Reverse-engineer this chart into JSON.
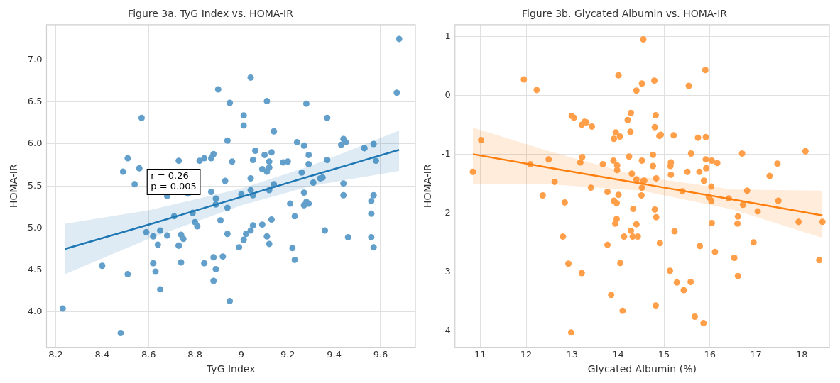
{
  "chart_data": [
    {
      "type": "scatter",
      "title": "Figure 3a. TyG Index vs. HOMA-IR",
      "xlabel": "TyG Index",
      "ylabel": "HOMA-IR",
      "grid": true,
      "legend": false,
      "xlim": [
        8.16,
        9.75
      ],
      "xticks": [
        8.2,
        8.4,
        8.6,
        8.8,
        9.0,
        9.2,
        9.4,
        9.6
      ],
      "ylim": [
        3.58,
        7.42
      ],
      "yticks": [
        {
          "value": 4,
          "label": "4.0"
        },
        4.5,
        {
          "value": 5,
          "label": "5.0"
        },
        5.5,
        {
          "value": 6,
          "label": "6.0"
        },
        6.5,
        {
          "value": 7,
          "label": "7.0"
        }
      ],
      "annotations": [
        "r = 0.26\np = 0.005"
      ],
      "series": [
        {
          "marker": "circle",
          "color": "#62a0cb",
          "x": [
            8.23,
            8.48,
            8.4,
            8.51,
            8.49,
            8.51,
            8.54,
            8.56,
            8.57,
            8.59,
            8.62,
            8.65,
            8.64,
            8.62,
            8.63,
            8.65,
            8.68,
            8.68,
            8.71,
            8.73,
            8.73,
            8.73,
            8.74,
            8.75,
            8.74,
            8.77,
            8.79,
            8.8,
            8.81,
            8.82,
            8.84,
            8.87,
            8.88,
            8.84,
            8.87,
            8.89,
            8.89,
            8.91,
            8.88,
            8.89,
            8.92,
            8.88,
            8.95,
            8.9,
            8.95,
            8.94,
            8.93,
            8.94,
            8.94,
            8.96,
            9.68,
            9.67,
            9.04,
            9.11,
            9.28,
            9.01,
            9.01,
            9.37,
            9.14,
            9.24,
            9.27,
            9.06,
            9.1,
            9.13,
            9.29,
            9.05,
            9.12,
            9.18,
            9.2,
            9.29,
            9.37,
            9.09,
            9.12,
            9.11,
            9.26,
            9.04,
            9.34,
            9.35,
            9.31,
            9.14,
            9.04,
            9.12,
            9.0,
            9.05,
            9.27,
            9.44,
            9.44,
            9.44,
            9.43,
            9.45,
            9.53,
            9.53,
            9.57,
            9.58,
            9.57,
            9.56,
            9.56,
            9.56,
            9.57,
            9.46,
            9.36,
            9.21,
            9.23,
            9.27,
            9.28,
            9.29,
            9.22,
            9.23,
            9.09,
            9.13,
            9.05,
            9.04,
            9.02,
            9.01,
            8.99,
            9.11,
            9.12
          ],
          "values": [
            4.04,
            3.75,
            4.55,
            4.45,
            5.67,
            5.83,
            5.52,
            5.71,
            6.31,
            4.95,
            4.9,
            4.97,
            4.8,
            4.58,
            4.48,
            4.27,
            5.38,
            4.91,
            5.14,
            5.8,
            4.79,
            4.79,
            4.92,
            4.87,
            4.59,
            5.41,
            5.18,
            5.07,
            5.02,
            5.8,
            5.83,
            5.83,
            5.88,
            4.58,
            5.43,
            5.35,
            5.28,
            5.09,
            4.65,
            4.51,
            4.66,
            4.37,
            4.13,
            6.65,
            6.49,
            6.04,
            5.56,
            5.24,
            4.93,
            5.79,
            7.25,
            6.61,
            6.79,
            6.51,
            6.48,
            6.34,
            6.22,
            6.31,
            6.15,
            6.02,
            5.98,
            5.92,
            5.87,
            5.9,
            5.87,
            5.81,
            5.79,
            5.78,
            5.79,
            5.76,
            5.81,
            5.7,
            5.72,
            5.67,
            5.66,
            5.59,
            5.59,
            5.6,
            5.54,
            5.52,
            5.45,
            5.45,
            5.4,
            5.39,
            5.42,
            5.53,
            5.39,
            6.06,
            5.99,
            6.02,
            5.95,
            5.95,
            6.0,
            5.8,
            5.39,
            5.32,
            5.17,
            4.89,
            4.77,
            4.89,
            4.97,
            5.29,
            5.14,
            5.27,
            5.31,
            5.29,
            4.76,
            4.62,
            5.04,
            5.1,
            5.03,
            4.97,
            4.93,
            4.86,
            4.77,
            4.9,
            4.81
          ]
        },
        {
          "type": "line",
          "marker": "none",
          "color": "#1f77b4",
          "x": [
            8.24,
            8.6,
            9.0,
            9.3,
            9.68
          ],
          "values": [
            4.75,
            5.04,
            5.37,
            5.62,
            5.93
          ],
          "lower": [
            4.45,
            4.87,
            5.27,
            5.5,
            5.68
          ],
          "upper": [
            5.05,
            5.21,
            5.47,
            5.74,
            6.16
          ]
        }
      ]
    },
    {
      "type": "scatter",
      "title": "Figure 3b. Glycated Albumin vs. HOMA-IR",
      "xlabel": "Glycated Albumin (%)",
      "ylabel": "HOMA-IR",
      "grid": true,
      "legend": false,
      "xlim": [
        10.45,
        18.6
      ],
      "xticks": [
        11,
        12,
        13,
        14,
        15,
        16,
        17,
        18
      ],
      "ylim": [
        -4.28,
        1.2
      ],
      "yticks": [
        -4,
        -3,
        -2,
        -1,
        0,
        1
      ],
      "series": [
        {
          "marker": "circle",
          "color": "#ff9f4a",
          "x": [
            10.84,
            11.02,
            11.95,
            12.23,
            12.09,
            12.49,
            12.62,
            12.36,
            12.84,
            12.8,
            12.92,
            13.21,
            12.98,
            12.99,
            13.04,
            13.21,
            13.27,
            13.31,
            13.43,
            13.22,
            13.18,
            13.41,
            13.67,
            13.77,
            13.9,
            13.98,
            13.98,
            14.01,
            13.91,
            13.97,
            13.97,
            13.94,
            13.77,
            13.85,
            14.1,
            14.05,
            14.13,
            14.01,
            13.95,
            14.04,
            13.91,
            14.28,
            14.21,
            14.27,
            14.24,
            14.3,
            14.4,
            14.52,
            14.33,
            14.4,
            14.28,
            14.32,
            14.43,
            14.4,
            14.52,
            14.55,
            14.52,
            14.51,
            14.54,
            14.79,
            15.54,
            15.9,
            14.82,
            14.8,
            14.9,
            14.93,
            15.21,
            15.74,
            15.91,
            16.7,
            18.08,
            17.47,
            17.3,
            14.76,
            14.76,
            14.83,
            14.57,
            15.15,
            15.14,
            15.15,
            15.59,
            15.51,
            15.77,
            15.91,
            16.04,
            16.16,
            15.92,
            15.87,
            16.03,
            15.4,
            15.98,
            16.03,
            16.41,
            16.81,
            16.72,
            17.04,
            17.49,
            17.93,
            18.45,
            18.38,
            16.61,
            16.6,
            16.04,
            16.95,
            16.53,
            16.61,
            16.11,
            15.78,
            15.23,
            14.91,
            14.8,
            14.83,
            15.13,
            15.28,
            15.58,
            15.43,
            14.82,
            15.67,
            15.86
          ],
          "values": [
            -1.3,
            -0.76,
            0.27,
            0.09,
            -1.17,
            -1.09,
            -1.47,
            -1.7,
            -1.82,
            -2.4,
            -2.86,
            -3.02,
            -4.03,
            -0.35,
            -0.38,
            -0.5,
            -0.45,
            -0.46,
            -0.53,
            -1.05,
            -1.14,
            -1.57,
            -1.17,
            -1.64,
            -1.11,
            -1.19,
            -1.27,
            -1.69,
            -1.79,
            -1.83,
            -2.1,
            -2.18,
            -2.54,
            -3.39,
            -3.66,
            -2.85,
            -2.4,
            0.34,
            -0.63,
            -0.7,
            -0.74,
            -0.3,
            -0.42,
            -0.62,
            -1.04,
            -1.33,
            -1.43,
            -1.11,
            -1.93,
            -2.19,
            -2.3,
            -2.4,
            -2.4,
            0.08,
            0.2,
            0.95,
            -1.57,
            -1.7,
            -1.46,
            0.25,
            0.16,
            0.43,
            -0.34,
            -0.54,
            -0.69,
            -0.67,
            -0.68,
            -0.72,
            -0.71,
            -0.99,
            -0.95,
            -1.16,
            -1.37,
            -1.01,
            -1.2,
            -1.41,
            -1.45,
            -1.14,
            -1.2,
            -1.35,
            -0.99,
            -1.3,
            -1.3,
            -1.09,
            -1.11,
            -1.15,
            -1.24,
            -1.45,
            -1.55,
            -1.63,
            -1.73,
            -1.79,
            -1.75,
            -1.62,
            -1.86,
            -1.97,
            -1.79,
            -2.15,
            -2.15,
            -2.8,
            -2.06,
            -2.18,
            -2.17,
            -2.5,
            -2.76,
            -3.07,
            -2.66,
            -2.56,
            -2.31,
            -2.51,
            -1.94,
            -2.07,
            -2.98,
            -3.18,
            -3.17,
            -3.31,
            -3.57,
            -3.76,
            -3.87
          ]
        },
        {
          "type": "line",
          "marker": "none",
          "color": "#ff7f0e",
          "x": [
            10.84,
            12.5,
            14.5,
            16.5,
            18.45
          ],
          "values": [
            -1.0,
            -1.23,
            -1.5,
            -1.77,
            -2.04
          ],
          "lower": [
            -1.5,
            -1.51,
            -1.62,
            -1.94,
            -2.42
          ],
          "upper": [
            -0.55,
            -0.95,
            -1.38,
            -1.6,
            -1.62
          ]
        }
      ]
    }
  ]
}
